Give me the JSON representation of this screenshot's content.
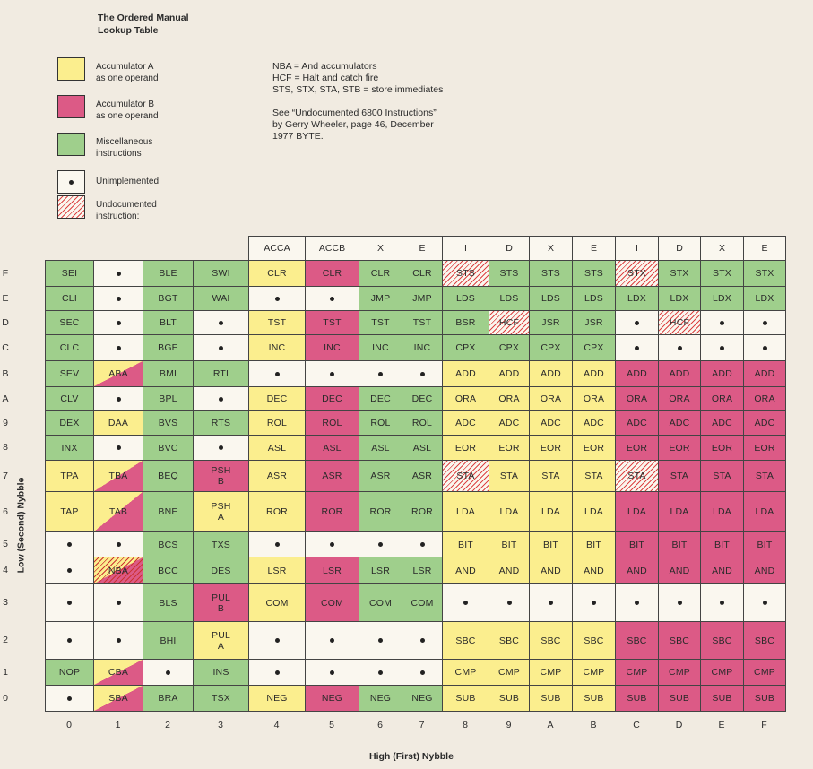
{
  "title": [
    "The Ordered Manual",
    "Lookup Table"
  ],
  "legend": [
    {
      "cls": "Y",
      "lines": [
        "Accumulator A",
        "as one operand"
      ],
      "icon": "yellow-swatch"
    },
    {
      "cls": "R",
      "lines": [
        "Accumulator B",
        "as one operand"
      ],
      "icon": "red-swatch"
    },
    {
      "cls": "G",
      "lines": [
        "Miscellaneous",
        "instructions"
      ],
      "icon": "green-swatch"
    },
    {
      "cls": "W",
      "lines": [
        "Unimplemented"
      ],
      "icon": "dot-swatch",
      "dot": true
    },
    {
      "cls": "H",
      "lines": [
        "Undocumented",
        "instruction:"
      ],
      "icon": "hatched-swatch"
    }
  ],
  "notes": [
    "NBA = And accumulators",
    "HCF = Halt and catch fire",
    "STS, STX, STA, STB = store immediates",
    "",
    "See “Undocumented 6800 Instructions”",
    "by  Gerry  Wheeler,  page 46,  December",
    "1977 BYTE."
  ],
  "column_headers": [
    "ACCA",
    "ACCB",
    "X",
    "E",
    "I",
    "D",
    "X",
    "E",
    "I",
    "D",
    "X",
    "E"
  ],
  "column_labels": [
    "0",
    "1",
    "2",
    "3",
    "4",
    "5",
    "6",
    "7",
    "8",
    "9",
    "A",
    "B",
    "C",
    "D",
    "E",
    "F"
  ],
  "row_labels": [
    "F",
    "E",
    "D",
    "C",
    "B",
    "A",
    "9",
    "8",
    "7",
    "6",
    "5",
    "4",
    "3",
    "2",
    "1",
    "0"
  ],
  "x_axis_label": "High (First) Nybble",
  "y_axis_label": "Low (Second) Nybble",
  "colors": {
    "yellow": "#fbee8e",
    "red": "#dc5a86",
    "green": "#9fcf8c",
    "blank": "#faf7ef",
    "background": "#f1ebe1"
  },
  "rows": [
    [
      [
        "SEI",
        "G"
      ],
      [
        "•",
        "W"
      ],
      [
        "BLE",
        "G"
      ],
      [
        "SWI",
        "G"
      ],
      [
        "CLR",
        "Y"
      ],
      [
        "CLR",
        "R"
      ],
      [
        "CLR",
        "G"
      ],
      [
        "CLR",
        "G"
      ],
      [
        "STS",
        "H"
      ],
      [
        "STS",
        "G"
      ],
      [
        "STS",
        "G"
      ],
      [
        "STS",
        "G"
      ],
      [
        "STX",
        "H"
      ],
      [
        "STX",
        "G"
      ],
      [
        "STX",
        "G"
      ],
      [
        "STX",
        "G"
      ]
    ],
    [
      [
        "CLI",
        "G"
      ],
      [
        "•",
        "W"
      ],
      [
        "BGT",
        "G"
      ],
      [
        "WAI",
        "G"
      ],
      [
        "•",
        "W"
      ],
      [
        "•",
        "W"
      ],
      [
        "JMP",
        "G"
      ],
      [
        "JMP",
        "G"
      ],
      [
        "LDS",
        "G"
      ],
      [
        "LDS",
        "G"
      ],
      [
        "LDS",
        "G"
      ],
      [
        "LDS",
        "G"
      ],
      [
        "LDX",
        "G"
      ],
      [
        "LDX",
        "G"
      ],
      [
        "LDX",
        "G"
      ],
      [
        "LDX",
        "G"
      ]
    ],
    [
      [
        "SEC",
        "G"
      ],
      [
        "•",
        "W"
      ],
      [
        "BLT",
        "G"
      ],
      [
        "•",
        "W"
      ],
      [
        "TST",
        "Y"
      ],
      [
        "TST",
        "R"
      ],
      [
        "TST",
        "G"
      ],
      [
        "TST",
        "G"
      ],
      [
        "BSR",
        "G"
      ],
      [
        "HCF",
        "H"
      ],
      [
        "JSR",
        "G"
      ],
      [
        "JSR",
        "G"
      ],
      [
        "•",
        "W"
      ],
      [
        "HCF",
        "H"
      ],
      [
        "•",
        "W"
      ],
      [
        "•",
        "W"
      ]
    ],
    [
      [
        "CLC",
        "G"
      ],
      [
        "•",
        "W"
      ],
      [
        "BGE",
        "G"
      ],
      [
        "•",
        "W"
      ],
      [
        "INC",
        "Y"
      ],
      [
        "INC",
        "R"
      ],
      [
        "INC",
        "G"
      ],
      [
        "INC",
        "G"
      ],
      [
        "CPX",
        "G"
      ],
      [
        "CPX",
        "G"
      ],
      [
        "CPX",
        "G"
      ],
      [
        "CPX",
        "G"
      ],
      [
        "•",
        "W"
      ],
      [
        "•",
        "W"
      ],
      [
        "•",
        "W"
      ],
      [
        "•",
        "W"
      ]
    ],
    [
      [
        "SEV",
        "G"
      ],
      [
        "ABA",
        "YR"
      ],
      [
        "BMI",
        "G"
      ],
      [
        "RTI",
        "G"
      ],
      [
        "•",
        "W"
      ],
      [
        "•",
        "W"
      ],
      [
        "•",
        "W"
      ],
      [
        "•",
        "W"
      ],
      [
        "ADD",
        "Y"
      ],
      [
        "ADD",
        "Y"
      ],
      [
        "ADD",
        "Y"
      ],
      [
        "ADD",
        "Y"
      ],
      [
        "ADD",
        "R"
      ],
      [
        "ADD",
        "R"
      ],
      [
        "ADD",
        "R"
      ],
      [
        "ADD",
        "R"
      ]
    ],
    [
      [
        "CLV",
        "G"
      ],
      [
        "•",
        "W"
      ],
      [
        "BPL",
        "G"
      ],
      [
        "•",
        "W"
      ],
      [
        "DEC",
        "Y"
      ],
      [
        "DEC",
        "R"
      ],
      [
        "DEC",
        "G"
      ],
      [
        "DEC",
        "G"
      ],
      [
        "ORA",
        "Y"
      ],
      [
        "ORA",
        "Y"
      ],
      [
        "ORA",
        "Y"
      ],
      [
        "ORA",
        "Y"
      ],
      [
        "ORA",
        "R"
      ],
      [
        "ORA",
        "R"
      ],
      [
        "ORA",
        "R"
      ],
      [
        "ORA",
        "R"
      ]
    ],
    [
      [
        "DEX",
        "G"
      ],
      [
        "DAA",
        "Y"
      ],
      [
        "BVS",
        "G"
      ],
      [
        "RTS",
        "G"
      ],
      [
        "ROL",
        "Y"
      ],
      [
        "ROL",
        "R"
      ],
      [
        "ROL",
        "G"
      ],
      [
        "ROL",
        "G"
      ],
      [
        "ADC",
        "Y"
      ],
      [
        "ADC",
        "Y"
      ],
      [
        "ADC",
        "Y"
      ],
      [
        "ADC",
        "Y"
      ],
      [
        "ADC",
        "R"
      ],
      [
        "ADC",
        "R"
      ],
      [
        "ADC",
        "R"
      ],
      [
        "ADC",
        "R"
      ]
    ],
    [
      [
        "INX",
        "G"
      ],
      [
        "•",
        "W"
      ],
      [
        "BVC",
        "G"
      ],
      [
        "•",
        "W"
      ],
      [
        "ASL",
        "Y"
      ],
      [
        "ASL",
        "R"
      ],
      [
        "ASL",
        "G"
      ],
      [
        "ASL",
        "G"
      ],
      [
        "EOR",
        "Y"
      ],
      [
        "EOR",
        "Y"
      ],
      [
        "EOR",
        "Y"
      ],
      [
        "EOR",
        "Y"
      ],
      [
        "EOR",
        "R"
      ],
      [
        "EOR",
        "R"
      ],
      [
        "EOR",
        "R"
      ],
      [
        "EOR",
        "R"
      ]
    ],
    [
      [
        "TPA",
        "Y"
      ],
      [
        "TBA",
        "YR"
      ],
      [
        "BEQ",
        "G"
      ],
      [
        "PSH\nB",
        "R"
      ],
      [
        "ASR",
        "Y"
      ],
      [
        "ASR",
        "R"
      ],
      [
        "ASR",
        "G"
      ],
      [
        "ASR",
        "G"
      ],
      [
        "STA",
        "H"
      ],
      [
        "STA",
        "Y"
      ],
      [
        "STA",
        "Y"
      ],
      [
        "STA",
        "Y"
      ],
      [
        "STA",
        "H"
      ],
      [
        "STA",
        "R"
      ],
      [
        "STA",
        "R"
      ],
      [
        "STA",
        "R"
      ]
    ],
    [
      [
        "TAP",
        "Y"
      ],
      [
        "TAB",
        "YR"
      ],
      [
        "BNE",
        "G"
      ],
      [
        "PSH\nA",
        "Y"
      ],
      [
        "ROR",
        "Y"
      ],
      [
        "ROR",
        "R"
      ],
      [
        "ROR",
        "G"
      ],
      [
        "ROR",
        "G"
      ],
      [
        "LDA",
        "Y"
      ],
      [
        "LDA",
        "Y"
      ],
      [
        "LDA",
        "Y"
      ],
      [
        "LDA",
        "Y"
      ],
      [
        "LDA",
        "R"
      ],
      [
        "LDA",
        "R"
      ],
      [
        "LDA",
        "R"
      ],
      [
        "LDA",
        "R"
      ]
    ],
    [
      [
        "•",
        "W"
      ],
      [
        "•",
        "W"
      ],
      [
        "BCS",
        "G"
      ],
      [
        "TXS",
        "G"
      ],
      [
        "•",
        "W"
      ],
      [
        "•",
        "W"
      ],
      [
        "•",
        "W"
      ],
      [
        "•",
        "W"
      ],
      [
        "BIT",
        "Y"
      ],
      [
        "BIT",
        "Y"
      ],
      [
        "BIT",
        "Y"
      ],
      [
        "BIT",
        "Y"
      ],
      [
        "BIT",
        "R"
      ],
      [
        "BIT",
        "R"
      ],
      [
        "BIT",
        "R"
      ],
      [
        "BIT",
        "R"
      ]
    ],
    [
      [
        "•",
        "W"
      ],
      [
        "NBA",
        "HR"
      ],
      [
        "BCC",
        "G"
      ],
      [
        "DES",
        "G"
      ],
      [
        "LSR",
        "Y"
      ],
      [
        "LSR",
        "R"
      ],
      [
        "LSR",
        "G"
      ],
      [
        "LSR",
        "G"
      ],
      [
        "AND",
        "Y"
      ],
      [
        "AND",
        "Y"
      ],
      [
        "AND",
        "Y"
      ],
      [
        "AND",
        "Y"
      ],
      [
        "AND",
        "R"
      ],
      [
        "AND",
        "R"
      ],
      [
        "AND",
        "R"
      ],
      [
        "AND",
        "R"
      ]
    ],
    [
      [
        "•",
        "W"
      ],
      [
        "•",
        "W"
      ],
      [
        "BLS",
        "G"
      ],
      [
        "PUL\nB",
        "R"
      ],
      [
        "COM",
        "Y"
      ],
      [
        "COM",
        "R"
      ],
      [
        "COM",
        "G"
      ],
      [
        "COM",
        "G"
      ],
      [
        "•",
        "W"
      ],
      [
        "•",
        "W"
      ],
      [
        "•",
        "W"
      ],
      [
        "•",
        "W"
      ],
      [
        "•",
        "W"
      ],
      [
        "•",
        "W"
      ],
      [
        "•",
        "W"
      ],
      [
        "•",
        "W"
      ]
    ],
    [
      [
        "•",
        "W"
      ],
      [
        "•",
        "W"
      ],
      [
        "BHI",
        "G"
      ],
      [
        "PUL\nA",
        "Y"
      ],
      [
        "•",
        "W"
      ],
      [
        "•",
        "W"
      ],
      [
        "•",
        "W"
      ],
      [
        "•",
        "W"
      ],
      [
        "SBC",
        "Y"
      ],
      [
        "SBC",
        "Y"
      ],
      [
        "SBC",
        "Y"
      ],
      [
        "SBC",
        "Y"
      ],
      [
        "SBC",
        "R"
      ],
      [
        "SBC",
        "R"
      ],
      [
        "SBC",
        "R"
      ],
      [
        "SBC",
        "R"
      ]
    ],
    [
      [
        "NOP",
        "G"
      ],
      [
        "CBA",
        "YR"
      ],
      [
        "•",
        "W"
      ],
      [
        "INS",
        "G"
      ],
      [
        "•",
        "W"
      ],
      [
        "•",
        "W"
      ],
      [
        "•",
        "W"
      ],
      [
        "•",
        "W"
      ],
      [
        "CMP",
        "Y"
      ],
      [
        "CMP",
        "Y"
      ],
      [
        "CMP",
        "Y"
      ],
      [
        "CMP",
        "Y"
      ],
      [
        "CMP",
        "R"
      ],
      [
        "CMP",
        "R"
      ],
      [
        "CMP",
        "R"
      ],
      [
        "CMP",
        "R"
      ]
    ],
    [
      [
        "•",
        "W"
      ],
      [
        "SBA",
        "YR"
      ],
      [
        "BRA",
        "G"
      ],
      [
        "TSX",
        "G"
      ],
      [
        "NEG",
        "Y"
      ],
      [
        "NEG",
        "R"
      ],
      [
        "NEG",
        "G"
      ],
      [
        "NEG",
        "G"
      ],
      [
        "SUB",
        "Y"
      ],
      [
        "SUB",
        "Y"
      ],
      [
        "SUB",
        "Y"
      ],
      [
        "SUB",
        "Y"
      ],
      [
        "SUB",
        "R"
      ],
      [
        "SUB",
        "R"
      ],
      [
        "SUB",
        "R"
      ],
      [
        "SUB",
        "R"
      ]
    ]
  ]
}
